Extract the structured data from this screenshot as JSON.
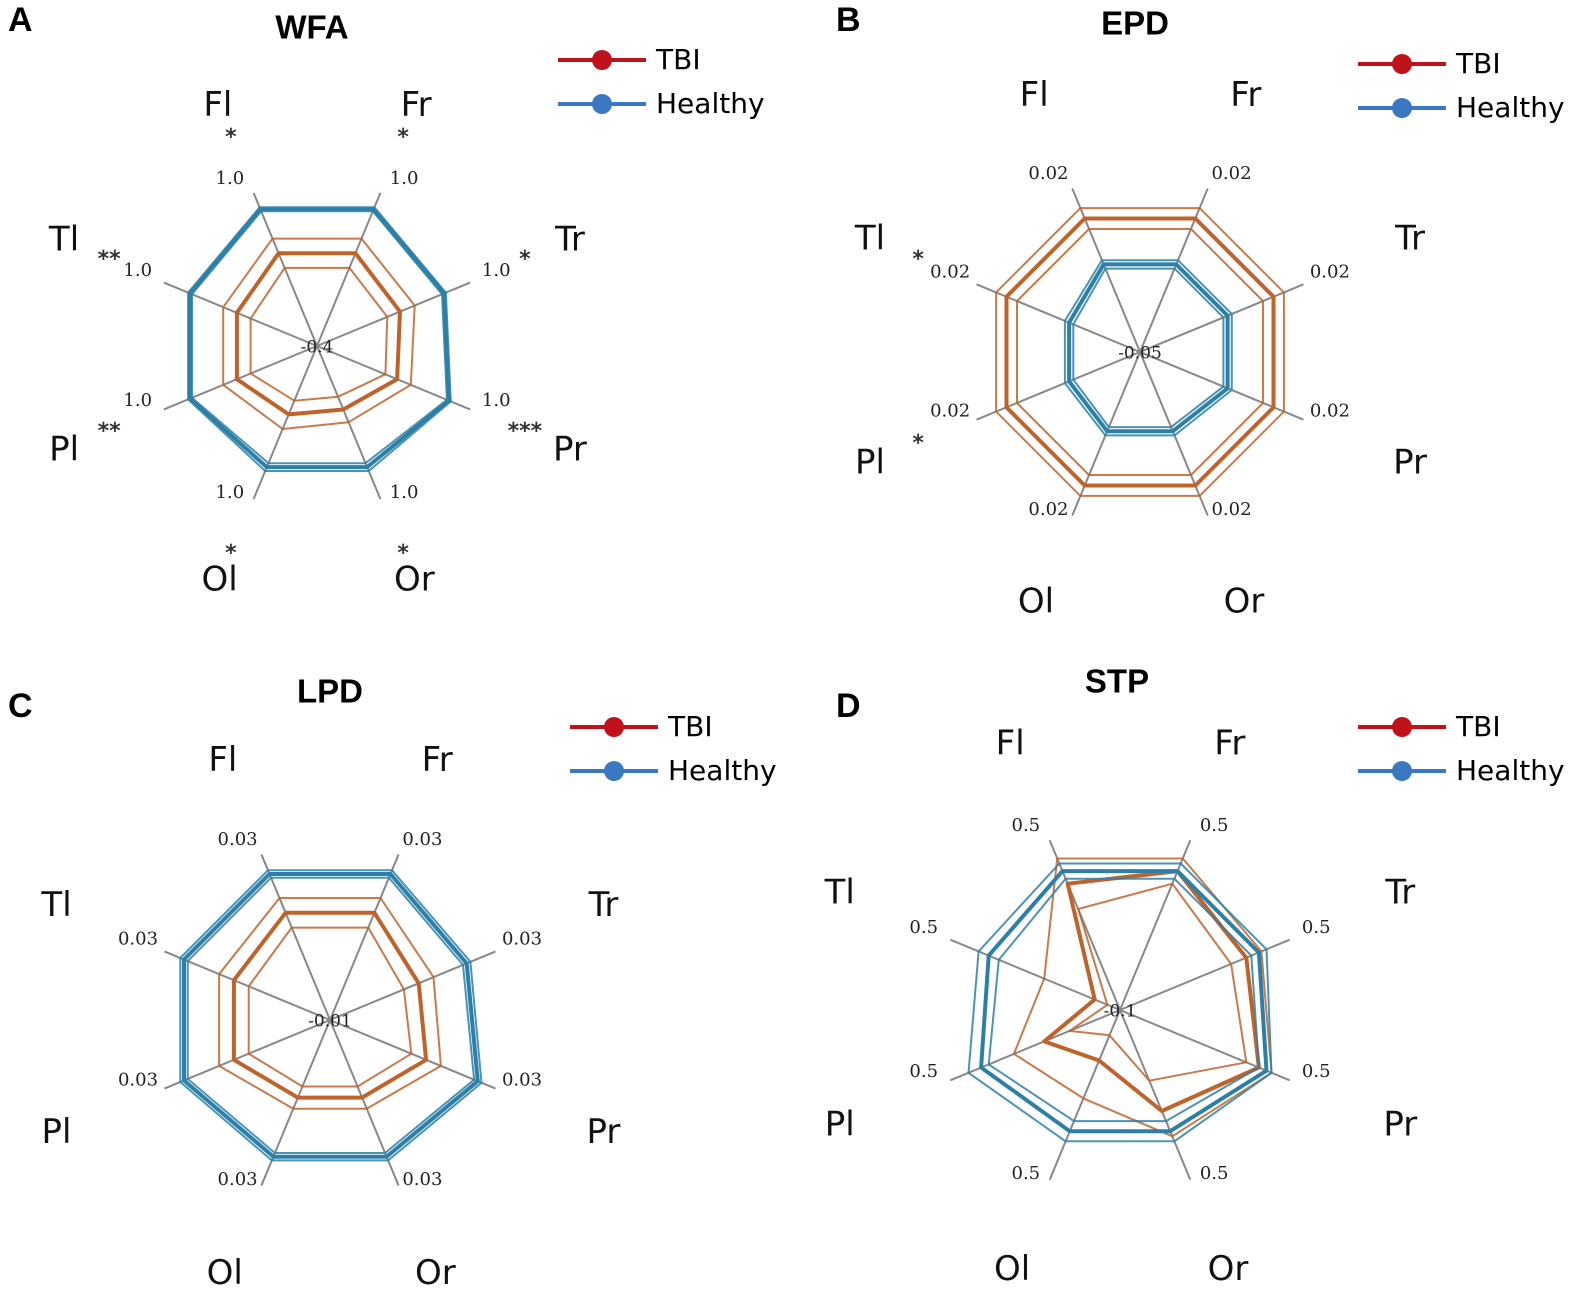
{
  "legend": [
    {
      "name": "TBI",
      "color": "#c0121b"
    },
    {
      "name": "Healthy",
      "color": "#3a78c2"
    }
  ],
  "series_colors": {
    "TBI": "#c0632a",
    "Healthy": "#2c80a8"
  },
  "chart_data": [
    {
      "type": "radar",
      "panel": "A",
      "title": "WFA",
      "axes": [
        "Fl",
        "Fr",
        "Tr",
        "Pr",
        "Or",
        "Ol",
        "Pl",
        "Tl"
      ],
      "center_label": "-0.4",
      "tick_labels": [
        "1.0",
        "1.0",
        "1.0",
        "1.0",
        "1.0",
        "1.0",
        "1.0",
        "1.0"
      ],
      "significance": [
        "*",
        "*",
        "*",
        "***",
        "*",
        "*",
        "**",
        "**"
      ],
      "r_range": [
        -0.4,
        1.0
      ],
      "series": [
        {
          "name": "TBI",
          "values": [
            0.55,
            0.55,
            0.45,
            0.42,
            0.25,
            0.3,
            0.42,
            0.42
          ],
          "lower": [
            0.4,
            0.4,
            0.32,
            0.3,
            0.12,
            0.16,
            0.28,
            0.28
          ],
          "upper": [
            0.7,
            0.7,
            0.6,
            0.56,
            0.38,
            0.45,
            0.56,
            0.56
          ]
        },
        {
          "name": "Healthy",
          "values": [
            1.0,
            1.0,
            0.9,
            0.95,
            0.84,
            0.84,
            0.9,
            0.9
          ],
          "lower": [
            0.98,
            0.98,
            0.88,
            0.93,
            0.8,
            0.8,
            0.88,
            0.88
          ],
          "upper": [
            1.02,
            1.02,
            0.92,
            0.97,
            0.88,
            0.88,
            0.92,
            0.92
          ]
        }
      ]
    },
    {
      "type": "radar",
      "panel": "B",
      "title": "EPD",
      "axes": [
        "Fl",
        "Fr",
        "Tr",
        "Pr",
        "Or",
        "Ol",
        "Pl",
        "Tl"
      ],
      "center_label": "-0.05",
      "tick_labels": [
        "0.02",
        "0.02",
        "0.02",
        "0.02",
        "0.02",
        "0.02",
        "0.02",
        "0.02"
      ],
      "significance": [
        "",
        "",
        "",
        "",
        "",
        "",
        "*",
        "*"
      ],
      "r_range": [
        -0.05,
        0.02
      ],
      "series": [
        {
          "name": "TBI",
          "values": [
            0.014,
            0.014,
            0.014,
            0.014,
            0.014,
            0.014,
            0.014,
            0.014
          ],
          "lower": [
            0.009,
            0.009,
            0.009,
            0.009,
            0.009,
            0.009,
            0.009,
            0.009
          ],
          "upper": [
            0.019,
            0.019,
            0.019,
            0.019,
            0.019,
            0.019,
            0.019,
            0.019
          ]
        },
        {
          "name": "Healthy",
          "values": [
            -0.008,
            -0.008,
            -0.008,
            -0.008,
            -0.012,
            -0.012,
            -0.016,
            -0.016
          ],
          "lower": [
            -0.01,
            -0.01,
            -0.01,
            -0.01,
            -0.014,
            -0.014,
            -0.018,
            -0.018
          ],
          "upper": [
            -0.006,
            -0.006,
            -0.006,
            -0.006,
            -0.01,
            -0.01,
            -0.014,
            -0.014
          ]
        }
      ]
    },
    {
      "type": "radar",
      "panel": "C",
      "title": "LPD",
      "axes": [
        "Fl",
        "Fr",
        "Tr",
        "Pr",
        "Or",
        "Ol",
        "Pl",
        "Tl"
      ],
      "center_label": "-0.01",
      "tick_labels": [
        "0.03",
        "0.03",
        "0.03",
        "0.03",
        "0.03",
        "0.03",
        "0.03",
        "0.03"
      ],
      "significance": [
        "",
        "",
        "",
        "",
        "",
        "",
        "",
        ""
      ],
      "r_range": [
        -0.01,
        0.03
      ],
      "series": [
        {
          "name": "TBI",
          "values": [
            0.019,
            0.019,
            0.014,
            0.016,
            0.011,
            0.011,
            0.016,
            0.016
          ],
          "lower": [
            0.015,
            0.015,
            0.01,
            0.012,
            0.008,
            0.008,
            0.012,
            0.012
          ],
          "upper": [
            0.023,
            0.023,
            0.018,
            0.02,
            0.014,
            0.014,
            0.02,
            0.02
          ]
        },
        {
          "name": "Healthy",
          "values": [
            0.0295,
            0.0295,
            0.027,
            0.03,
            0.027,
            0.027,
            0.0295,
            0.0295
          ],
          "lower": [
            0.0285,
            0.0285,
            0.026,
            0.029,
            0.026,
            0.026,
            0.0285,
            0.0285
          ],
          "upper": [
            0.0305,
            0.0305,
            0.028,
            0.031,
            0.028,
            0.028,
            0.0305,
            0.0305
          ]
        }
      ]
    },
    {
      "type": "radar",
      "panel": "D",
      "title": "STP",
      "axes": [
        "Fl",
        "Fr",
        "Tr",
        "Pr",
        "Or",
        "Ol",
        "Pl",
        "Tl"
      ],
      "center_label": "-0.1",
      "tick_labels": [
        "0.5",
        "0.5",
        "0.5",
        "0.5",
        "0.5",
        "0.5",
        "0.5",
        "0.5"
      ],
      "significance": [
        "",
        "",
        "",
        "",
        "",
        "",
        "",
        ""
      ],
      "r_range": [
        -0.1,
        0.5
      ],
      "series": [
        {
          "name": "TBI",
          "values": [
            0.4,
            0.45,
            0.4,
            0.45,
            0.3,
            0.1,
            0.2,
            0.0
          ],
          "lower": [
            0.3,
            0.4,
            0.34,
            0.4,
            0.18,
            0.0,
            0.1,
            -0.05
          ],
          "upper": [
            0.5,
            0.5,
            0.46,
            0.5,
            0.4,
            0.25,
            0.32,
            0.2
          ]
        },
        {
          "name": "Healthy",
          "values": [
            0.45,
            0.45,
            0.45,
            0.48,
            0.38,
            0.38,
            0.45,
            0.42
          ],
          "lower": [
            0.42,
            0.42,
            0.42,
            0.45,
            0.34,
            0.34,
            0.42,
            0.38
          ],
          "upper": [
            0.48,
            0.48,
            0.48,
            0.5,
            0.42,
            0.42,
            0.5,
            0.46
          ]
        }
      ]
    }
  ]
}
